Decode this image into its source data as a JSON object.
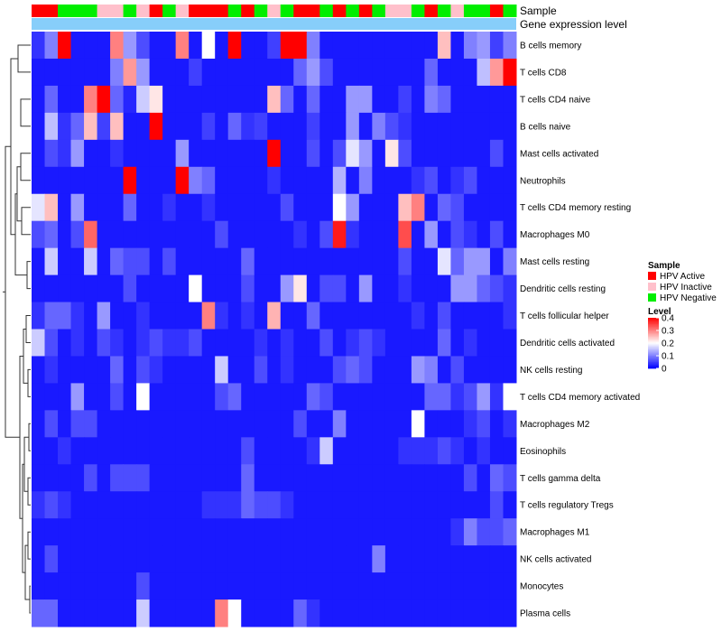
{
  "chart_data": {
    "type": "heatmap",
    "title": "",
    "annotation_labels": [
      "Sample",
      "Gene expression level"
    ],
    "legend_sample": {
      "title": "Sample",
      "items": [
        {
          "label": "HPV Active",
          "color": "#ff0000"
        },
        {
          "label": "HPV Inactive",
          "color": "#ffc0cb"
        },
        {
          "label": "HPV Negative",
          "color": "#00ee00"
        }
      ]
    },
    "legend_level": {
      "title": "Level",
      "ticks": [
        "0.4",
        "0.3",
        "0.2",
        "0.1",
        "0"
      ],
      "tick_values": [
        0.4,
        0.3,
        0.2,
        0.1,
        0
      ],
      "min": 0,
      "max": 0.4
    },
    "colors": {
      "low": "#0000ff",
      "mid": "#ffffff",
      "high": "#ff0000",
      "gene_expression_bar": "#87cefa",
      "dendrogram": "#333333",
      "groups": {
        "A": "#ff0000",
        "I": "#ffc0cb",
        "N": "#00ee00"
      }
    },
    "samples": [
      "A",
      "A",
      "N",
      "N",
      "N",
      "I",
      "I",
      "N",
      "I",
      "A",
      "N",
      "I",
      "A",
      "A",
      "A",
      "N",
      "A",
      "N",
      "I",
      "N",
      "A",
      "A",
      "N",
      "A",
      "N",
      "A",
      "N",
      "I",
      "I",
      "N",
      "A",
      "N",
      "I",
      "N",
      "N",
      "A",
      "N"
    ],
    "rows": [
      "B cells memory",
      "T cells CD8",
      "T cells CD4 naive",
      "B cells naive",
      "Mast cells activated",
      "Neutrophils",
      "T cells CD4 memory resting",
      "Macrophages M0",
      "Mast cells resting",
      "Dendritic cells resting",
      "T cells follicular helper",
      "Dendritic cells activated",
      "NK cells resting",
      "T cells CD4 memory activated",
      "Macrophages M2",
      "Eosinophils",
      "T cells gamma delta",
      "T cells regulatory  Tregs",
      "Macrophages M1",
      "NK cells activated",
      "Monocytes",
      "Plasma cells"
    ],
    "values": [
      [
        0.04,
        0.1,
        0.4,
        0.02,
        0.02,
        0.02,
        0.3,
        0.12,
        0.06,
        0.02,
        0.02,
        0.3,
        0.02,
        0.2,
        0.02,
        0.4,
        0.02,
        0.02,
        0.05,
        0.4,
        0.4,
        0.1,
        0.02,
        0.02,
        0.02,
        0.02,
        0.02,
        0.02,
        0.02,
        0.02,
        0.02,
        0.25,
        0.02,
        0.1,
        0.12,
        0.05,
        0.1
      ],
      [
        0.02,
        0.02,
        0.02,
        0.02,
        0.02,
        0.02,
        0.1,
        0.28,
        0.12,
        0.02,
        0.02,
        0.02,
        0.05,
        0.02,
        0.02,
        0.02,
        0.02,
        0.02,
        0.02,
        0.02,
        0.08,
        0.12,
        0.06,
        0.02,
        0.02,
        0.02,
        0.02,
        0.02,
        0.02,
        0.02,
        0.08,
        0.02,
        0.02,
        0.02,
        0.15,
        0.28,
        0.4
      ],
      [
        0.02,
        0.08,
        0.02,
        0.02,
        0.3,
        0.4,
        0.08,
        0.03,
        0.16,
        0.22,
        0.02,
        0.02,
        0.02,
        0.02,
        0.02,
        0.02,
        0.02,
        0.02,
        0.25,
        0.08,
        0.02,
        0.08,
        0.02,
        0.02,
        0.12,
        0.12,
        0.02,
        0.02,
        0.05,
        0.02,
        0.1,
        0.08,
        0.02,
        0.02,
        0.02,
        0.02,
        0.02
      ],
      [
        0.02,
        0.15,
        0.04,
        0.08,
        0.25,
        0.05,
        0.25,
        0.02,
        0.02,
        0.4,
        0.02,
        0.02,
        0.02,
        0.05,
        0.02,
        0.08,
        0.04,
        0.05,
        0.02,
        0.02,
        0.02,
        0.05,
        0.02,
        0.02,
        0.12,
        0.02,
        0.1,
        0.06,
        0.04,
        0.02,
        0.02,
        0.02,
        0.02,
        0.02,
        0.02,
        0.02,
        0.02
      ],
      [
        0.02,
        0.06,
        0.04,
        0.12,
        0.02,
        0.02,
        0.04,
        0.02,
        0.02,
        0.02,
        0.02,
        0.12,
        0.02,
        0.02,
        0.02,
        0.02,
        0.02,
        0.02,
        0.4,
        0.02,
        0.02,
        0.06,
        0.02,
        0.06,
        0.18,
        0.12,
        0.02,
        0.22,
        0.06,
        0.02,
        0.02,
        0.02,
        0.02,
        0.02,
        0.02,
        0.06,
        0.02
      ],
      [
        0.02,
        0.02,
        0.02,
        0.02,
        0.02,
        0.02,
        0.02,
        0.4,
        0.02,
        0.02,
        0.02,
        0.4,
        0.1,
        0.08,
        0.02,
        0.02,
        0.02,
        0.02,
        0.04,
        0.02,
        0.02,
        0.02,
        0.02,
        0.14,
        0.02,
        0.1,
        0.02,
        0.02,
        0.02,
        0.04,
        0.06,
        0.02,
        0.04,
        0.06,
        0.02,
        0.02,
        0.02
      ],
      [
        0.18,
        0.25,
        0.02,
        0.12,
        0.02,
        0.02,
        0.02,
        0.08,
        0.02,
        0.02,
        0.04,
        0.02,
        0.02,
        0.04,
        0.02,
        0.02,
        0.02,
        0.02,
        0.02,
        0.06,
        0.02,
        0.02,
        0.02,
        0.2,
        0.12,
        0.02,
        0.02,
        0.02,
        0.25,
        0.3,
        0.02,
        0.08,
        0.06,
        0.02,
        0.02,
        0.02,
        0.02
      ],
      [
        0.06,
        0.08,
        0.02,
        0.06,
        0.32,
        0.02,
        0.02,
        0.02,
        0.02,
        0.02,
        0.02,
        0.02,
        0.02,
        0.02,
        0.06,
        0.02,
        0.02,
        0.02,
        0.02,
        0.02,
        0.04,
        0.02,
        0.06,
        0.38,
        0.04,
        0.02,
        0.02,
        0.02,
        0.34,
        0.02,
        0.12,
        0.02,
        0.06,
        0.04,
        0.02,
        0.06,
        0.02
      ],
      [
        0.02,
        0.16,
        0.02,
        0.02,
        0.16,
        0.02,
        0.08,
        0.06,
        0.06,
        0.02,
        0.06,
        0.02,
        0.02,
        0.02,
        0.02,
        0.02,
        0.08,
        0.02,
        0.02,
        0.02,
        0.02,
        0.02,
        0.02,
        0.02,
        0.02,
        0.02,
        0.02,
        0.02,
        0.06,
        0.02,
        0.02,
        0.18,
        0.08,
        0.12,
        0.12,
        0.02,
        0.1
      ],
      [
        0.02,
        0.02,
        0.02,
        0.02,
        0.02,
        0.02,
        0.02,
        0.06,
        0.02,
        0.02,
        0.02,
        0.02,
        0.2,
        0.02,
        0.02,
        0.02,
        0.06,
        0.02,
        0.02,
        0.12,
        0.22,
        0.02,
        0.06,
        0.06,
        0.02,
        0.12,
        0.02,
        0.02,
        0.04,
        0.02,
        0.02,
        0.02,
        0.12,
        0.12,
        0.08,
        0.06,
        0.04
      ],
      [
        0.04,
        0.08,
        0.08,
        0.04,
        0.02,
        0.12,
        0.02,
        0.02,
        0.04,
        0.02,
        0.02,
        0.02,
        0.02,
        0.3,
        0.04,
        0.02,
        0.04,
        0.02,
        0.26,
        0.02,
        0.02,
        0.08,
        0.02,
        0.02,
        0.02,
        0.02,
        0.02,
        0.02,
        0.02,
        0.04,
        0.02,
        0.06,
        0.02,
        0.02,
        0.02,
        0.02,
        0.04
      ],
      [
        0.16,
        0.06,
        0.02,
        0.04,
        0.02,
        0.06,
        0.04,
        0.02,
        0.04,
        0.06,
        0.04,
        0.04,
        0.06,
        0.02,
        0.02,
        0.02,
        0.02,
        0.04,
        0.02,
        0.04,
        0.02,
        0.02,
        0.06,
        0.02,
        0.04,
        0.06,
        0.04,
        0.02,
        0.02,
        0.02,
        0.02,
        0.08,
        0.02,
        0.04,
        0.02,
        0.02,
        0.02
      ],
      [
        0.02,
        0.04,
        0.02,
        0.02,
        0.02,
        0.02,
        0.08,
        0.02,
        0.06,
        0.04,
        0.02,
        0.02,
        0.02,
        0.02,
        0.16,
        0.02,
        0.02,
        0.06,
        0.02,
        0.04,
        0.02,
        0.02,
        0.02,
        0.06,
        0.08,
        0.06,
        0.02,
        0.02,
        0.02,
        0.12,
        0.1,
        0.02,
        0.06,
        0.02,
        0.02,
        0.02,
        0.02
      ],
      [
        0.02,
        0.02,
        0.02,
        0.12,
        0.02,
        0.02,
        0.06,
        0.02,
        0.2,
        0.02,
        0.02,
        0.02,
        0.02,
        0.02,
        0.06,
        0.08,
        0.02,
        0.02,
        0.02,
        0.02,
        0.02,
        0.08,
        0.06,
        0.02,
        0.02,
        0.02,
        0.02,
        0.02,
        0.02,
        0.02,
        0.08,
        0.08,
        0.04,
        0.06,
        0.12,
        0.04,
        0.2
      ],
      [
        0.02,
        0.06,
        0.02,
        0.06,
        0.06,
        0.02,
        0.02,
        0.02,
        0.02,
        0.02,
        0.02,
        0.02,
        0.02,
        0.02,
        0.02,
        0.02,
        0.02,
        0.02,
        0.02,
        0.02,
        0.06,
        0.02,
        0.02,
        0.1,
        0.02,
        0.02,
        0.02,
        0.02,
        0.02,
        0.2,
        0.02,
        0.02,
        0.02,
        0.04,
        0.06,
        0.02,
        0.04
      ],
      [
        0.02,
        0.02,
        0.04,
        0.02,
        0.02,
        0.02,
        0.02,
        0.02,
        0.02,
        0.02,
        0.02,
        0.02,
        0.02,
        0.02,
        0.02,
        0.02,
        0.06,
        0.02,
        0.02,
        0.02,
        0.02,
        0.04,
        0.16,
        0.02,
        0.02,
        0.02,
        0.02,
        0.02,
        0.04,
        0.04,
        0.04,
        0.06,
        0.04,
        0.02,
        0.04,
        0.02,
        0.02
      ],
      [
        0.02,
        0.02,
        0.02,
        0.02,
        0.06,
        0.02,
        0.06,
        0.06,
        0.06,
        0.02,
        0.02,
        0.02,
        0.02,
        0.02,
        0.02,
        0.02,
        0.08,
        0.02,
        0.02,
        0.02,
        0.02,
        0.02,
        0.02,
        0.02,
        0.02,
        0.02,
        0.02,
        0.02,
        0.02,
        0.02,
        0.02,
        0.02,
        0.02,
        0.06,
        0.02,
        0.08,
        0.06
      ],
      [
        0.04,
        0.06,
        0.04,
        0.02,
        0.02,
        0.02,
        0.02,
        0.02,
        0.02,
        0.02,
        0.02,
        0.02,
        0.02,
        0.04,
        0.04,
        0.04,
        0.08,
        0.06,
        0.06,
        0.04,
        0.02,
        0.02,
        0.02,
        0.02,
        0.02,
        0.02,
        0.02,
        0.02,
        0.02,
        0.02,
        0.02,
        0.02,
        0.02,
        0.02,
        0.02,
        0.06,
        0.02
      ],
      [
        0.02,
        0.02,
        0.02,
        0.02,
        0.02,
        0.02,
        0.02,
        0.02,
        0.02,
        0.02,
        0.02,
        0.02,
        0.02,
        0.02,
        0.02,
        0.02,
        0.02,
        0.02,
        0.02,
        0.02,
        0.02,
        0.02,
        0.02,
        0.02,
        0.02,
        0.02,
        0.02,
        0.02,
        0.02,
        0.02,
        0.02,
        0.02,
        0.04,
        0.1,
        0.06,
        0.06,
        0.08
      ],
      [
        0.02,
        0.06,
        0.02,
        0.02,
        0.02,
        0.02,
        0.02,
        0.02,
        0.02,
        0.02,
        0.02,
        0.02,
        0.02,
        0.02,
        0.02,
        0.02,
        0.02,
        0.02,
        0.02,
        0.02,
        0.02,
        0.02,
        0.02,
        0.02,
        0.02,
        0.02,
        0.1,
        0.02,
        0.02,
        0.02,
        0.02,
        0.02,
        0.02,
        0.02,
        0.02,
        0.02,
        0.02
      ],
      [
        0.02,
        0.02,
        0.02,
        0.02,
        0.02,
        0.02,
        0.02,
        0.02,
        0.06,
        0.02,
        0.02,
        0.02,
        0.02,
        0.02,
        0.02,
        0.02,
        0.02,
        0.02,
        0.02,
        0.02,
        0.02,
        0.02,
        0.02,
        0.02,
        0.02,
        0.02,
        0.02,
        0.02,
        0.02,
        0.02,
        0.02,
        0.02,
        0.02,
        0.02,
        0.02,
        0.02,
        0.02
      ],
      [
        0.08,
        0.08,
        0.02,
        0.02,
        0.02,
        0.02,
        0.02,
        0.02,
        0.16,
        0.02,
        0.02,
        0.02,
        0.02,
        0.02,
        0.3,
        0.2,
        0.02,
        0.02,
        0.02,
        0.02,
        0.08,
        0.04,
        0.02,
        0.02,
        0.02,
        0.02,
        0.02,
        0.02,
        0.02,
        0.02,
        0.02,
        0.02,
        0.02,
        0.02,
        0.02,
        0.02,
        0.02
      ]
    ]
  }
}
